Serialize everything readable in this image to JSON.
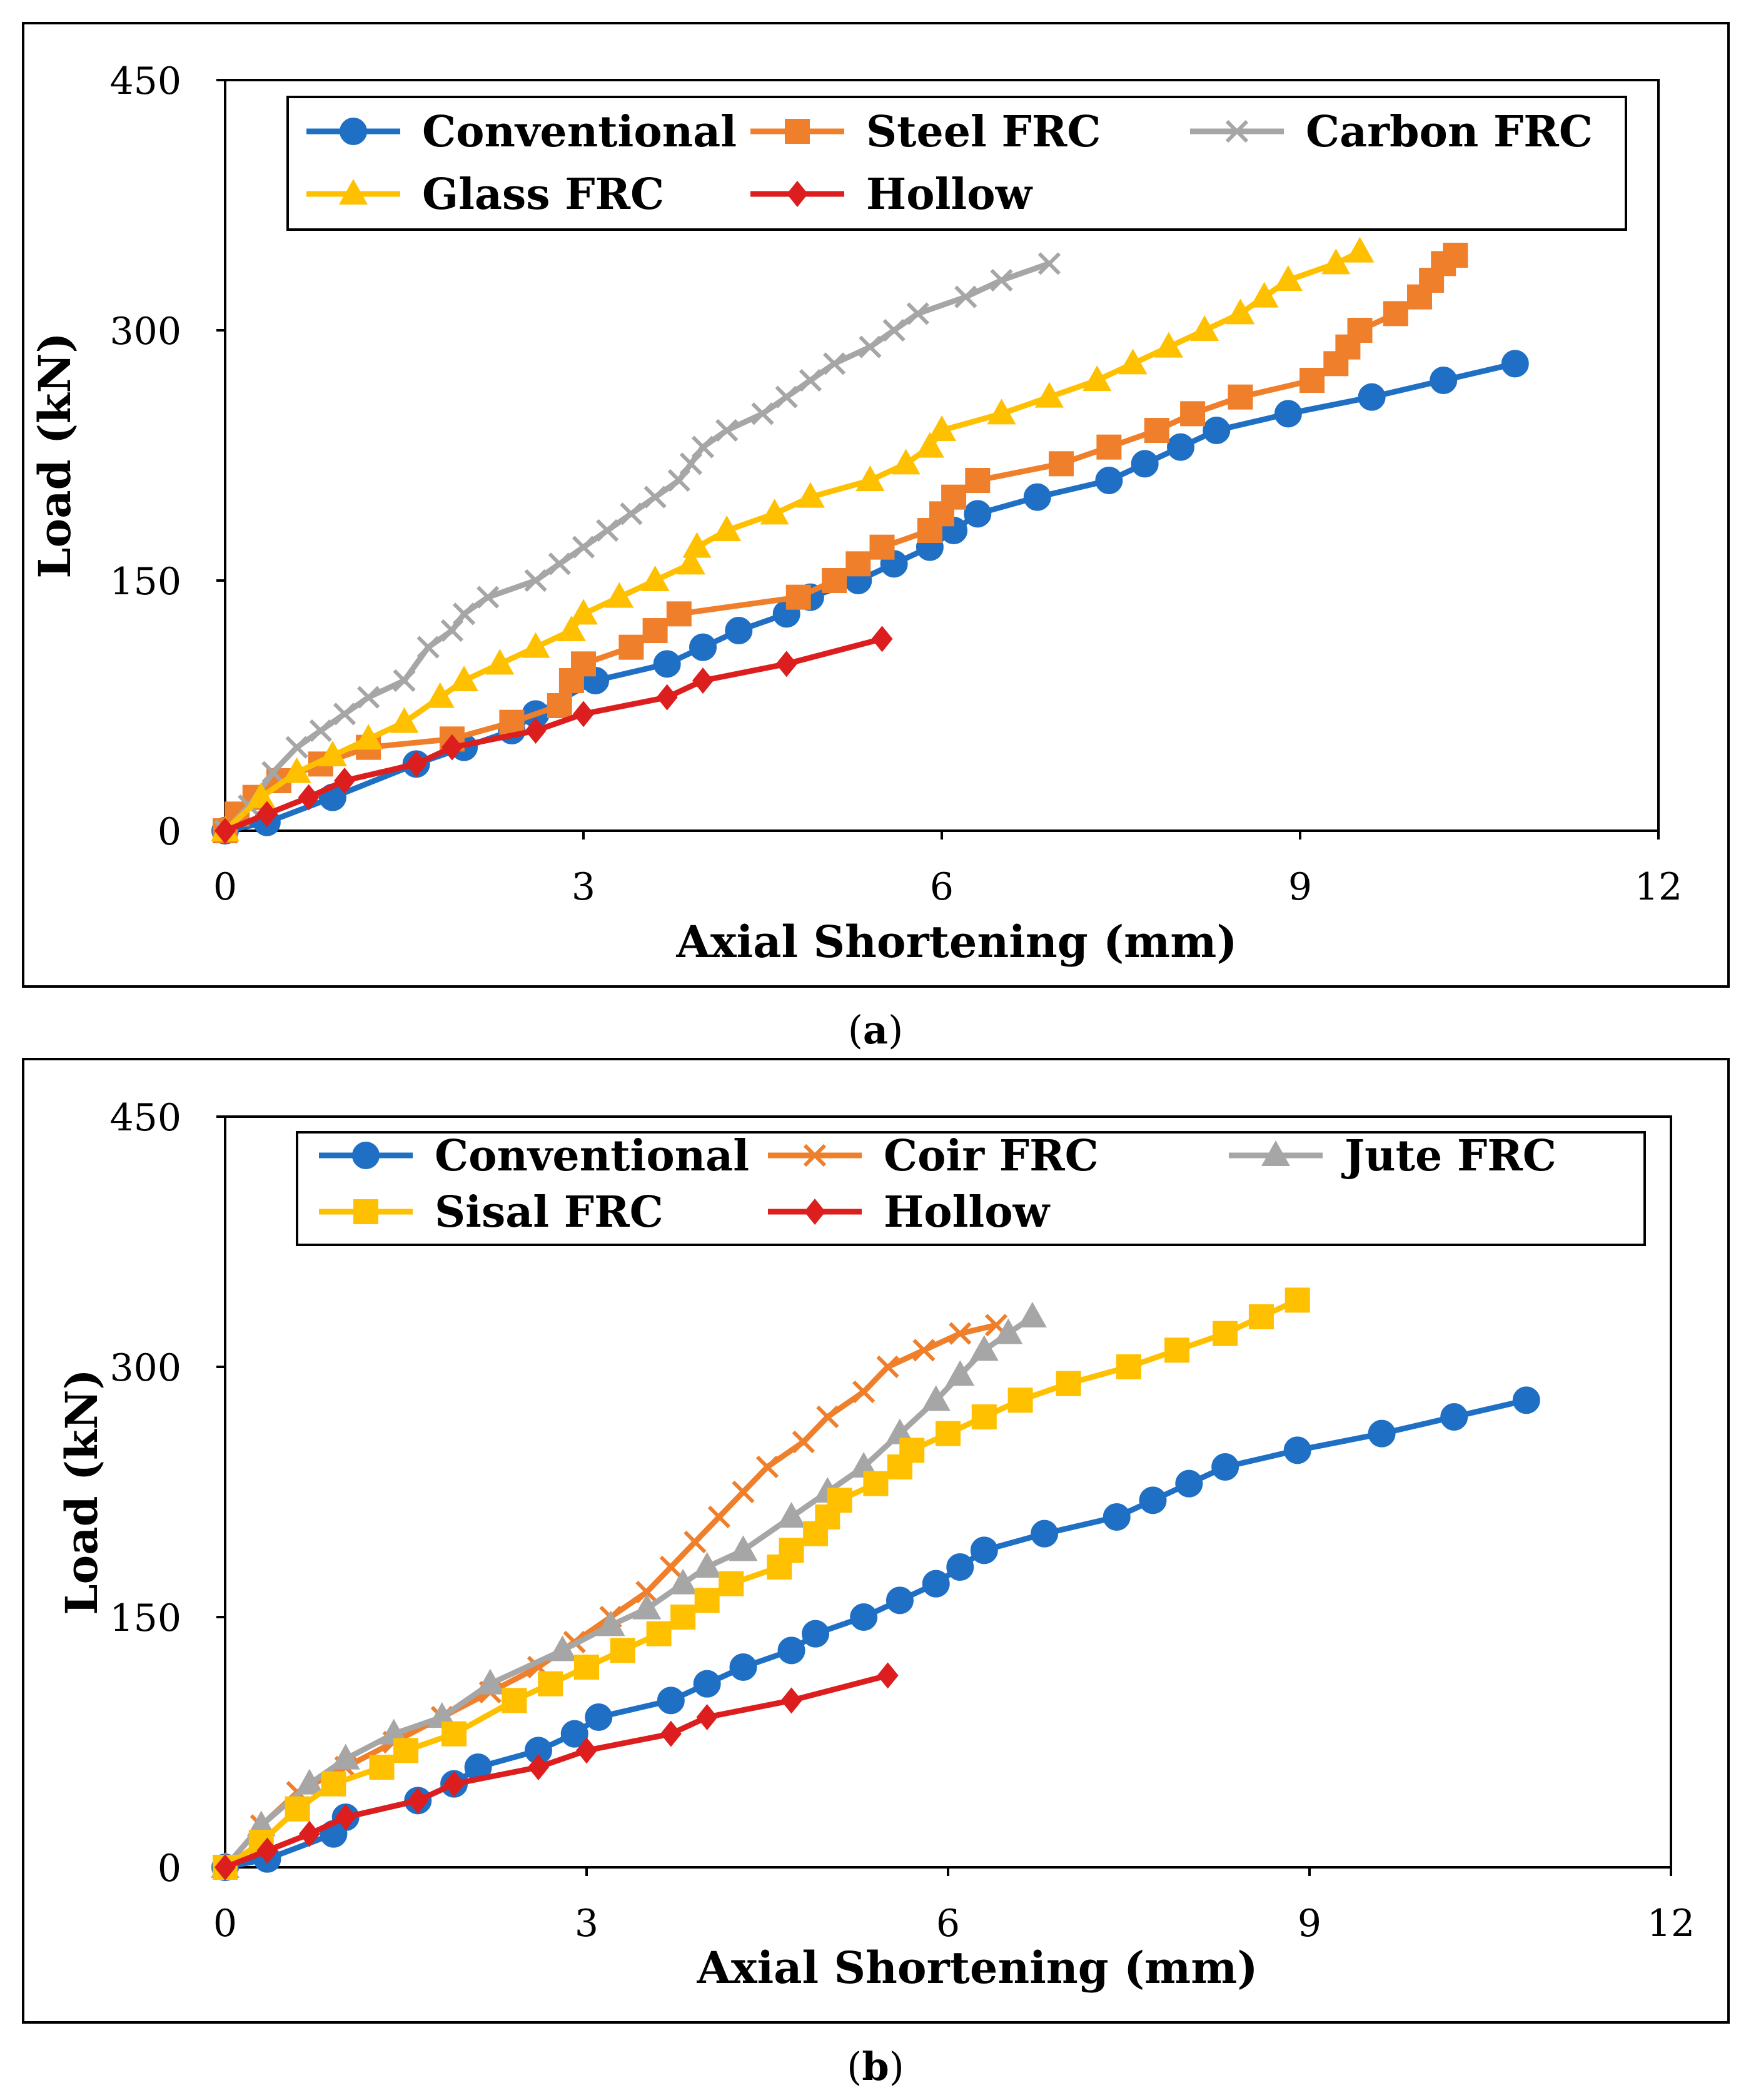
{
  "chart_data": [
    {
      "type": "line",
      "panel_label": "a",
      "caption_open": "(",
      "caption_close": ")",
      "xlabel": "Axial Shortening (mm)",
      "ylabel": "Load (kN)",
      "xlim": [
        0,
        12
      ],
      "ylim": [
        0,
        450
      ],
      "xticks": [
        0,
        3,
        6,
        9,
        12
      ],
      "yticks": [
        0,
        150,
        300,
        450
      ],
      "grid": false,
      "legend_position": "top",
      "series": [
        {
          "name": "Conventional",
          "color": "#1F6FC5",
          "marker": "circle",
          "points": [
            [
              0,
              0
            ],
            [
              0.35,
              5
            ],
            [
              0.9,
              20
            ],
            [
              1.6,
              40
            ],
            [
              2.0,
              50
            ],
            [
              2.4,
              60
            ],
            [
              2.6,
              70
            ],
            [
              3.1,
              90
            ],
            [
              3.7,
              100
            ],
            [
              4.0,
              110
            ],
            [
              4.3,
              120
            ],
            [
              4.7,
              130
            ],
            [
              4.9,
              140
            ],
            [
              5.3,
              150
            ],
            [
              5.6,
              160
            ],
            [
              5.9,
              170
            ],
            [
              6.1,
              180
            ],
            [
              6.3,
              190
            ],
            [
              6.8,
              200
            ],
            [
              7.4,
              210
            ],
            [
              7.7,
              220
            ],
            [
              8.0,
              230
            ],
            [
              8.3,
              240
            ],
            [
              8.9,
              250
            ],
            [
              9.6,
              260
            ],
            [
              10.2,
              270
            ],
            [
              10.8,
              280
            ]
          ]
        },
        {
          "name": "Steel FRC",
          "color": "#F07F2B",
          "marker": "square",
          "points": [
            [
              0,
              0
            ],
            [
              0.1,
              10
            ],
            [
              0.25,
              20
            ],
            [
              0.45,
              30
            ],
            [
              0.8,
              40
            ],
            [
              1.2,
              50
            ],
            [
              1.9,
              55
            ],
            [
              2.4,
              65
            ],
            [
              2.8,
              75
            ],
            [
              2.9,
              90
            ],
            [
              3.0,
              100
            ],
            [
              3.4,
              110
            ],
            [
              3.6,
              120
            ],
            [
              3.8,
              130
            ],
            [
              4.8,
              140
            ],
            [
              5.1,
              150
            ],
            [
              5.3,
              160
            ],
            [
              5.5,
              170
            ],
            [
              5.9,
              180
            ],
            [
              6.0,
              190
            ],
            [
              6.1,
              200
            ],
            [
              6.3,
              210
            ],
            [
              7.0,
              220
            ],
            [
              7.4,
              230
            ],
            [
              7.8,
              240
            ],
            [
              8.1,
              250
            ],
            [
              8.5,
              260
            ],
            [
              9.1,
              270
            ],
            [
              9.3,
              280
            ],
            [
              9.4,
              290
            ],
            [
              9.5,
              300
            ],
            [
              9.8,
              310
            ],
            [
              10.0,
              320
            ],
            [
              10.1,
              330
            ],
            [
              10.2,
              340
            ],
            [
              10.3,
              345
            ]
          ]
        },
        {
          "name": "Carbon FRC",
          "color": "#A6A6A6",
          "marker": "x",
          "points": [
            [
              0,
              0
            ],
            [
              0.2,
              15
            ],
            [
              0.4,
              35
            ],
            [
              0.6,
              50
            ],
            [
              0.8,
              60
            ],
            [
              1.0,
              70
            ],
            [
              1.2,
              80
            ],
            [
              1.5,
              90
            ],
            [
              1.7,
              110
            ],
            [
              1.9,
              120
            ],
            [
              2.0,
              130
            ],
            [
              2.2,
              140
            ],
            [
              2.6,
              150
            ],
            [
              2.8,
              160
            ],
            [
              3.0,
              170
            ],
            [
              3.2,
              180
            ],
            [
              3.4,
              190
            ],
            [
              3.6,
              200
            ],
            [
              3.8,
              210
            ],
            [
              3.9,
              220
            ],
            [
              4.0,
              230
            ],
            [
              4.2,
              240
            ],
            [
              4.5,
              250
            ],
            [
              4.7,
              260
            ],
            [
              4.9,
              270
            ],
            [
              5.1,
              280
            ],
            [
              5.4,
              290
            ],
            [
              5.6,
              300
            ],
            [
              5.8,
              310
            ],
            [
              6.2,
              320
            ],
            [
              6.5,
              330
            ],
            [
              6.9,
              340
            ]
          ]
        },
        {
          "name": "Glass FRC",
          "color": "#FFC000",
          "marker": "triangle",
          "points": [
            [
              0,
              0
            ],
            [
              0.3,
              20
            ],
            [
              0.6,
              35
            ],
            [
              0.9,
              45
            ],
            [
              1.2,
              55
            ],
            [
              1.5,
              65
            ],
            [
              1.8,
              80
            ],
            [
              2.0,
              90
            ],
            [
              2.3,
              100
            ],
            [
              2.6,
              110
            ],
            [
              2.9,
              120
            ],
            [
              3.0,
              130
            ],
            [
              3.3,
              140
            ],
            [
              3.6,
              150
            ],
            [
              3.9,
              160
            ],
            [
              3.95,
              170
            ],
            [
              4.2,
              180
            ],
            [
              4.6,
              190
            ],
            [
              4.9,
              200
            ],
            [
              5.4,
              210
            ],
            [
              5.7,
              220
            ],
            [
              5.9,
              230
            ],
            [
              6.0,
              240
            ],
            [
              6.5,
              250
            ],
            [
              6.9,
              260
            ],
            [
              7.3,
              270
            ],
            [
              7.6,
              280
            ],
            [
              7.9,
              290
            ],
            [
              8.2,
              300
            ],
            [
              8.5,
              310
            ],
            [
              8.7,
              320
            ],
            [
              8.9,
              330
            ],
            [
              9.3,
              340
            ],
            [
              9.5,
              347
            ]
          ]
        },
        {
          "name": "Hollow",
          "color": "#DC1E1E",
          "marker": "diamond",
          "points": [
            [
              0,
              0
            ],
            [
              0.35,
              10
            ],
            [
              0.7,
              20
            ],
            [
              1.0,
              30
            ],
            [
              1.6,
              40
            ],
            [
              1.9,
              50
            ],
            [
              2.6,
              60
            ],
            [
              3.0,
              70
            ],
            [
              3.7,
              80
            ],
            [
              4.0,
              90
            ],
            [
              4.7,
              100
            ],
            [
              5.5,
              115
            ]
          ]
        }
      ]
    },
    {
      "type": "line",
      "panel_label": "b",
      "caption_open": "(",
      "caption_close": ")",
      "xlabel": "Axial Shortening (mm)",
      "ylabel": "Load (kN)",
      "xlim": [
        0,
        12
      ],
      "ylim": [
        0,
        450
      ],
      "xticks": [
        0,
        3,
        6,
        9,
        12
      ],
      "yticks": [
        0,
        150,
        300,
        450
      ],
      "grid": false,
      "legend_position": "top",
      "series": [
        {
          "name": "Conventional",
          "color": "#1F6FC5",
          "marker": "circle",
          "points": [
            [
              0,
              0
            ],
            [
              0.35,
              5
            ],
            [
              0.9,
              20
            ],
            [
              1.0,
              30
            ],
            [
              1.6,
              40
            ],
            [
              1.9,
              50
            ],
            [
              2.1,
              60
            ],
            [
              2.6,
              70
            ],
            [
              2.9,
              80
            ],
            [
              3.1,
              90
            ],
            [
              3.7,
              100
            ],
            [
              4.0,
              110
            ],
            [
              4.3,
              120
            ],
            [
              4.7,
              130
            ],
            [
              4.9,
              140
            ],
            [
              5.3,
              150
            ],
            [
              5.6,
              160
            ],
            [
              5.9,
              170
            ],
            [
              6.1,
              180
            ],
            [
              6.3,
              190
            ],
            [
              6.8,
              200
            ],
            [
              7.4,
              210
            ],
            [
              7.7,
              220
            ],
            [
              8.0,
              230
            ],
            [
              8.3,
              240
            ],
            [
              8.9,
              250
            ],
            [
              9.6,
              260
            ],
            [
              10.2,
              270
            ],
            [
              10.8,
              280
            ]
          ]
        },
        {
          "name": "Coir FRC",
          "color": "#F07F2B",
          "marker": "x",
          "points": [
            [
              0,
              0
            ],
            [
              0.3,
              25
            ],
            [
              0.6,
              45
            ],
            [
              1.0,
              60
            ],
            [
              1.4,
              75
            ],
            [
              1.8,
              90
            ],
            [
              2.2,
              105
            ],
            [
              2.6,
              120
            ],
            [
              2.9,
              135
            ],
            [
              3.2,
              150
            ],
            [
              3.5,
              165
            ],
            [
              3.7,
              180
            ],
            [
              3.9,
              195
            ],
            [
              4.1,
              210
            ],
            [
              4.3,
              225
            ],
            [
              4.5,
              240
            ],
            [
              4.8,
              255
            ],
            [
              5.0,
              270
            ],
            [
              5.3,
              285
            ],
            [
              5.5,
              300
            ],
            [
              5.8,
              310
            ],
            [
              6.1,
              320
            ],
            [
              6.4,
              325
            ]
          ]
        },
        {
          "name": "Jute FRC",
          "color": "#A6A6A6",
          "marker": "triangle",
          "points": [
            [
              0,
              0
            ],
            [
              0.3,
              25
            ],
            [
              0.7,
              50
            ],
            [
              1.0,
              65
            ],
            [
              1.4,
              80
            ],
            [
              1.8,
              90
            ],
            [
              2.2,
              110
            ],
            [
              2.8,
              130
            ],
            [
              3.2,
              145
            ],
            [
              3.5,
              155
            ],
            [
              3.8,
              170
            ],
            [
              4.0,
              180
            ],
            [
              4.3,
              190
            ],
            [
              4.7,
              210
            ],
            [
              5.0,
              225
            ],
            [
              5.3,
              240
            ],
            [
              5.6,
              260
            ],
            [
              5.9,
              280
            ],
            [
              6.1,
              295
            ],
            [
              6.3,
              310
            ],
            [
              6.5,
              320
            ],
            [
              6.7,
              330
            ]
          ]
        },
        {
          "name": "Sisal FRC",
          "color": "#FFC000",
          "marker": "square",
          "points": [
            [
              0,
              0
            ],
            [
              0.3,
              15
            ],
            [
              0.6,
              35
            ],
            [
              0.9,
              50
            ],
            [
              1.3,
              60
            ],
            [
              1.5,
              70
            ],
            [
              1.9,
              80
            ],
            [
              2.4,
              100
            ],
            [
              2.7,
              110
            ],
            [
              3.0,
              120
            ],
            [
              3.3,
              130
            ],
            [
              3.6,
              140
            ],
            [
              3.8,
              150
            ],
            [
              4.0,
              160
            ],
            [
              4.2,
              170
            ],
            [
              4.6,
              180
            ],
            [
              4.7,
              190
            ],
            [
              4.9,
              200
            ],
            [
              5.0,
              210
            ],
            [
              5.1,
              220
            ],
            [
              5.4,
              230
            ],
            [
              5.6,
              240
            ],
            [
              5.7,
              250
            ],
            [
              6.0,
              260
            ],
            [
              6.3,
              270
            ],
            [
              6.6,
              280
            ],
            [
              7.0,
              290
            ],
            [
              7.5,
              300
            ],
            [
              7.9,
              310
            ],
            [
              8.3,
              320
            ],
            [
              8.6,
              330
            ],
            [
              8.9,
              340
            ]
          ]
        },
        {
          "name": "Hollow",
          "color": "#DC1E1E",
          "marker": "diamond",
          "points": [
            [
              0,
              0
            ],
            [
              0.35,
              10
            ],
            [
              0.7,
              20
            ],
            [
              1.0,
              30
            ],
            [
              1.6,
              40
            ],
            [
              1.9,
              50
            ],
            [
              2.6,
              60
            ],
            [
              3.0,
              70
            ],
            [
              3.7,
              80
            ],
            [
              4.0,
              90
            ],
            [
              4.7,
              100
            ],
            [
              5.5,
              115
            ]
          ]
        }
      ]
    }
  ]
}
